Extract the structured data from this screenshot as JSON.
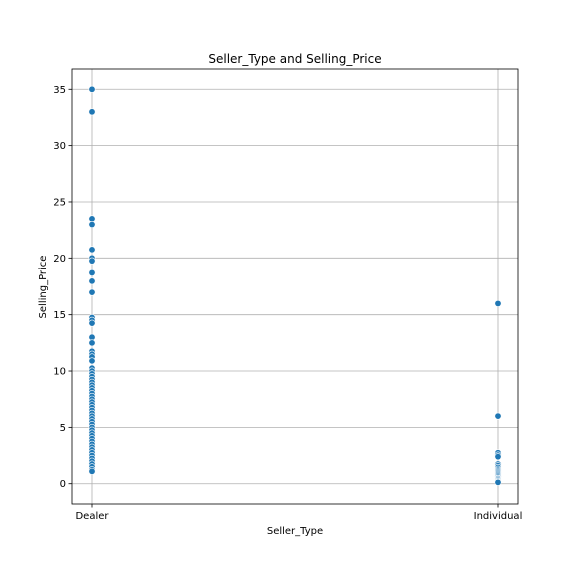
{
  "chart_data": {
    "type": "scatter",
    "title": "Seller_Type and Selling_Price",
    "xlabel": "Seller_Type",
    "ylabel": "Selling_Price",
    "categories": [
      "Dealer",
      "Individual"
    ],
    "ylim": [
      -1.8,
      36.8
    ],
    "yticks": [
      0,
      5,
      10,
      15,
      20,
      25,
      30,
      35
    ],
    "grid": true,
    "marker_color": "#1f77b4",
    "series": [
      {
        "category": "Dealer",
        "values": [
          35.0,
          33.0,
          23.5,
          23.0,
          20.75,
          20.0,
          19.75,
          18.75,
          18.0,
          17.0,
          14.75,
          14.5,
          14.25,
          13.0,
          12.5,
          11.75,
          11.5,
          11.25,
          10.9,
          10.25,
          10.0,
          9.75,
          9.5,
          9.25,
          9.0,
          8.75,
          8.5,
          8.25,
          8.0,
          7.75,
          7.5,
          7.25,
          7.0,
          6.75,
          6.5,
          6.25,
          6.0,
          5.75,
          5.5,
          5.25,
          5.0,
          4.75,
          4.5,
          4.25,
          4.0,
          3.75,
          3.5,
          3.25,
          3.0,
          2.75,
          2.5,
          2.25,
          2.0,
          1.75,
          1.5,
          1.25,
          1.1
        ]
      },
      {
        "category": "Individual",
        "values": [
          16.0,
          6.0,
          2.75,
          2.55,
          2.4,
          1.75,
          1.6,
          1.45,
          1.3,
          1.2,
          1.1,
          1.0,
          0.9,
          0.8,
          0.7,
          0.6,
          0.5,
          0.45,
          0.35,
          0.25,
          0.17,
          0.12
        ]
      }
    ]
  }
}
